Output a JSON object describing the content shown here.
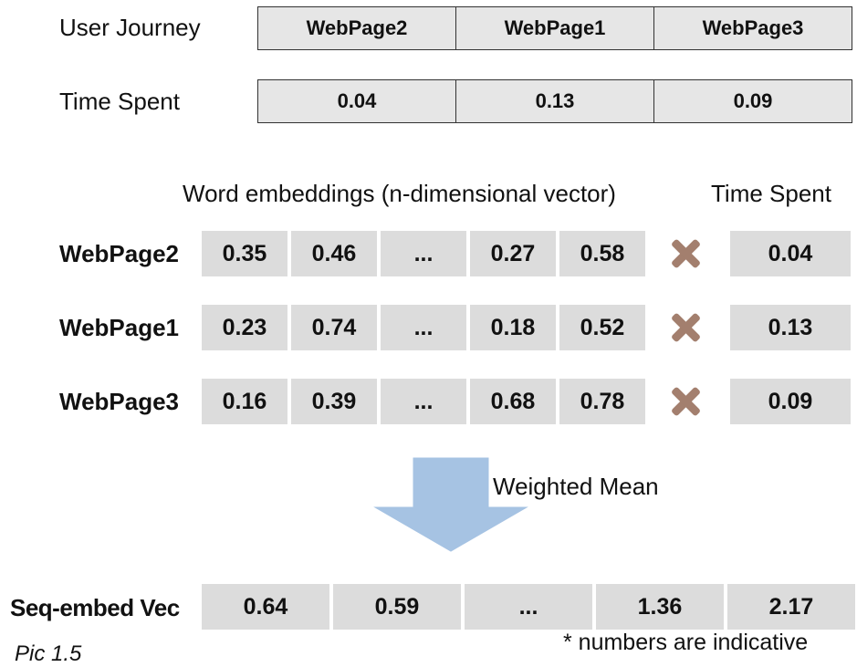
{
  "journey": {
    "label": "User Journey",
    "pages": [
      "WebPage2",
      "WebPage1",
      "WebPage3"
    ]
  },
  "time": {
    "label": "Time Spent",
    "values": [
      "0.04",
      "0.13",
      "0.09"
    ]
  },
  "embeddings": {
    "heading": "Word embeddings (n-dimensional vector)",
    "time_heading": "Time Spent",
    "rows": [
      {
        "label": "WebPage2",
        "values": [
          "0.35",
          "0.46",
          "...",
          "0.27",
          "0.58"
        ],
        "time": "0.04"
      },
      {
        "label": "WebPage1",
        "values": [
          "0.23",
          "0.74",
          "...",
          "0.18",
          "0.52"
        ],
        "time": "0.13"
      },
      {
        "label": "WebPage3",
        "values": [
          "0.16",
          "0.39",
          "...",
          "0.68",
          "0.78"
        ],
        "time": "0.09"
      }
    ]
  },
  "arrow": {
    "label": "Weighted Mean",
    "color": "#a6c3e3"
  },
  "output": {
    "label": "Seq-embed Vec",
    "values": [
      "0.64",
      "0.59",
      "...",
      "1.36",
      "2.17"
    ]
  },
  "footnote": "* numbers are indicative",
  "caption": "Pic 1.5",
  "colors": {
    "cell": "#dcdcdc",
    "multiply": "#a37f6e"
  }
}
